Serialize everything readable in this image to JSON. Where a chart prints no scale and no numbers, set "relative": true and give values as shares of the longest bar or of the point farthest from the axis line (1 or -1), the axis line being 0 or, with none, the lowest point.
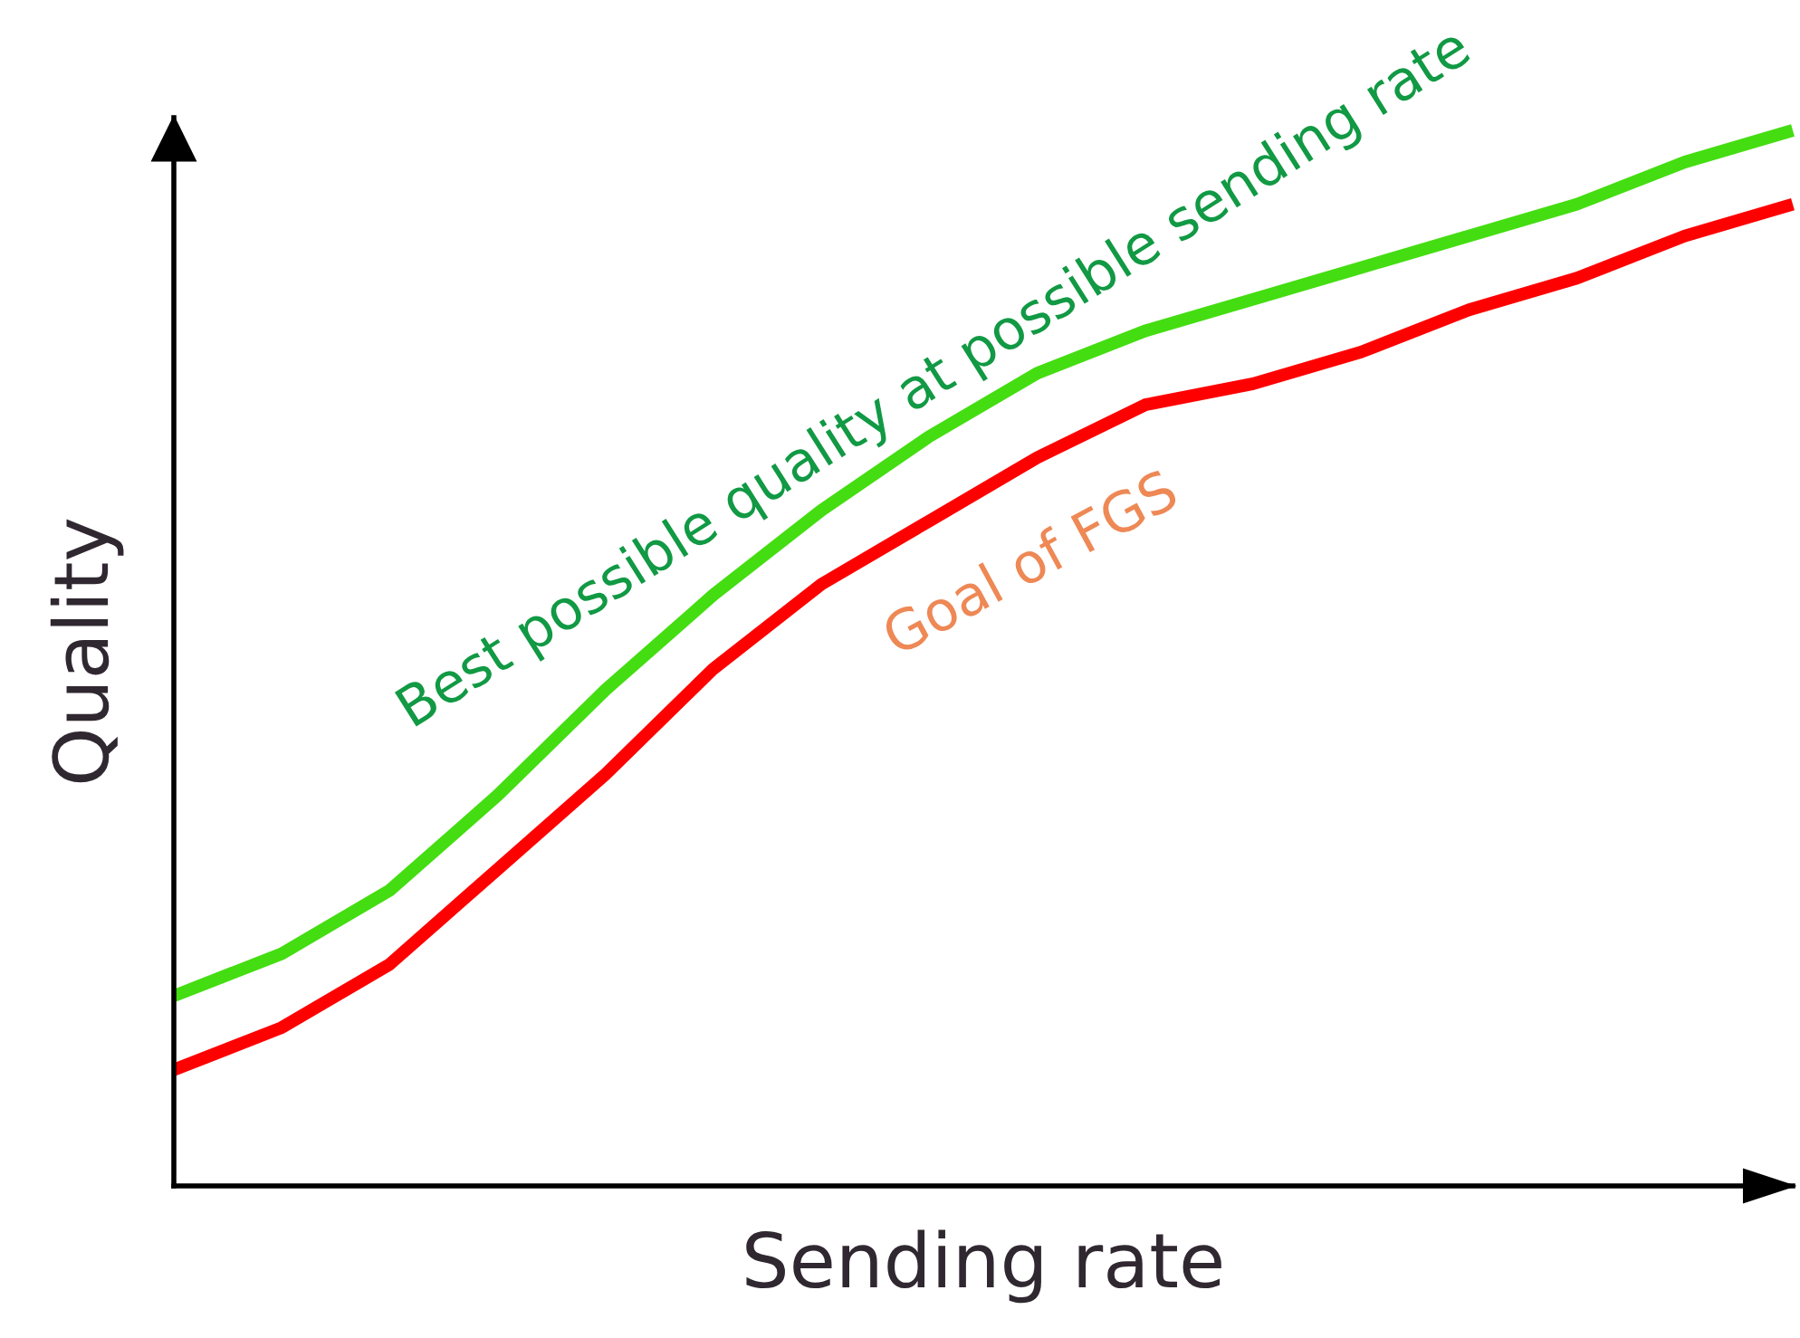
{
  "chart_data": {
    "type": "line",
    "relative": true,
    "xlabel": "Sending rate",
    "ylabel": "Quality",
    "categories": [
      null,
      null,
      null,
      null,
      null,
      null,
      null,
      null,
      null,
      null,
      null,
      null,
      null,
      null,
      null,
      null
    ],
    "series": [
      {
        "name": "Best possible quality at possible sending rate",
        "color": "#44dd11",
        "values": [
          0.18,
          0.22,
          0.28,
          0.37,
          0.47,
          0.56,
          0.64,
          0.71,
          0.77,
          0.81,
          0.84,
          0.87,
          0.9,
          0.93,
          0.97,
          1.0
        ]
      },
      {
        "name": "Goal of FGS",
        "color": "#ff0000",
        "values": [
          0.11,
          0.15,
          0.21,
          0.3,
          0.39,
          0.49,
          0.57,
          0.63,
          0.69,
          0.74,
          0.76,
          0.79,
          0.83,
          0.86,
          0.9,
          0.93
        ]
      }
    ]
  }
}
